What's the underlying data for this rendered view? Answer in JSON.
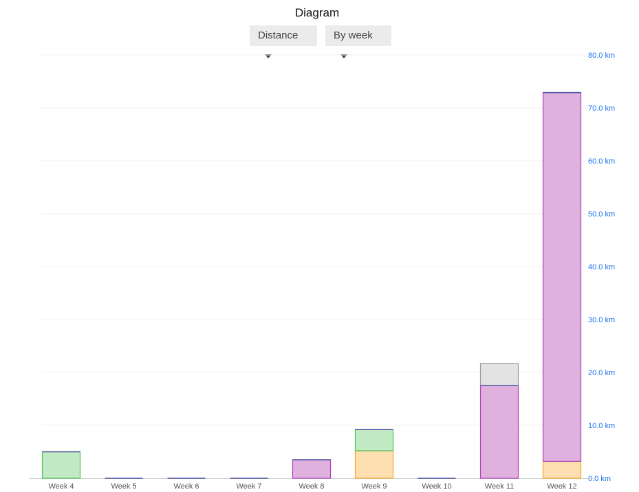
{
  "title": "Diagram",
  "controls": {
    "metric": "Distance",
    "grouping": "By week"
  },
  "chart_data": {
    "type": "bar",
    "stacked": true,
    "categories": [
      "Week 4",
      "Week 5",
      "Week 6",
      "Week 7",
      "Week 8",
      "Week 9",
      "Week 10",
      "Week 11",
      "Week 12"
    ],
    "series": [
      {
        "color": "#fddfb1",
        "stroke": "#f5a623",
        "values": [
          0,
          0,
          0,
          0,
          0,
          5.2,
          0,
          0,
          3.2
        ]
      },
      {
        "color": "#e0b1de",
        "stroke": "#b040b8",
        "values": [
          0,
          0,
          0,
          0,
          3.5,
          0,
          0,
          17.5,
          69.7
        ]
      },
      {
        "color": "#c2eac4",
        "stroke": "#4cc24f",
        "values": [
          5.0,
          0,
          0,
          0,
          0,
          4.0,
          0,
          0,
          0
        ]
      },
      {
        "color": "#e3e3e3",
        "stroke": "#999999",
        "values": [
          0,
          0,
          0,
          0,
          0,
          0,
          0,
          4.2,
          0
        ]
      }
    ],
    "ylim": [
      0,
      80
    ],
    "yticks": [
      "0.0 km",
      "10.0 km",
      "20.0 km",
      "30.0 km",
      "40.0 km",
      "50.0 km",
      "60.0 km",
      "70.0 km",
      "80.0 km"
    ],
    "ytick_color": "#1a73e8",
    "grid": true,
    "yaxis_position": "right"
  }
}
